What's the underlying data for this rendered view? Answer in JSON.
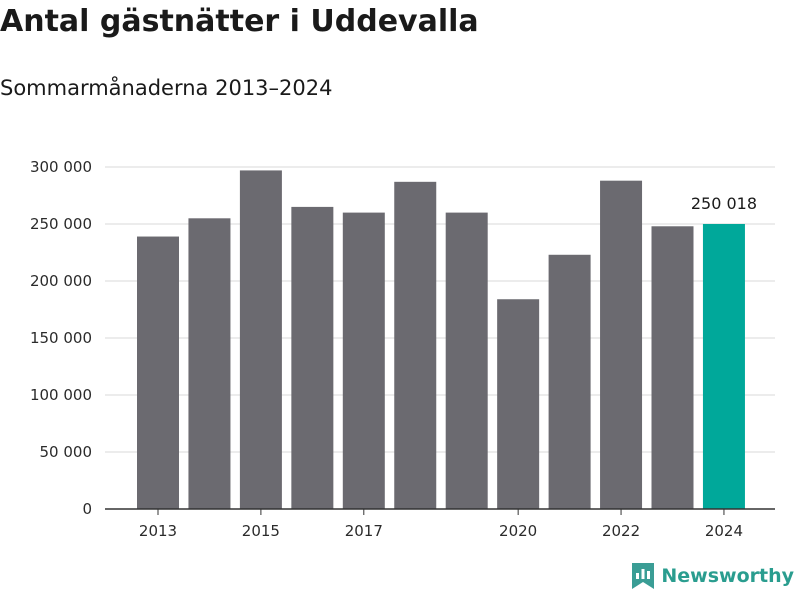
{
  "title": "Antal gästnätter i Uddevalla",
  "subtitle": "Sommarmånaderna 2013–2024",
  "brand": {
    "name": "Newsworthy",
    "logo_icon": "bar-chart-bookmark-icon",
    "color": "#3a9d95"
  },
  "colors": {
    "bar": "#6b6a70",
    "highlight": "#00a89a",
    "grid": "#d9d9d9",
    "axis": "#333333"
  },
  "chart_data": {
    "type": "bar",
    "title": "Antal gästnätter i Uddevalla",
    "subtitle": "Sommarmånaderna 2013–2024",
    "categories": [
      "2013",
      "2014",
      "2015",
      "2016",
      "2017",
      "2018",
      "2019",
      "2020",
      "2021",
      "2022",
      "2023",
      "2024"
    ],
    "values": [
      239000,
      255000,
      297000,
      265000,
      260000,
      287000,
      260000,
      184000,
      223000,
      288000,
      248000,
      250018
    ],
    "x_tick_labels": [
      "2013",
      "",
      "2015",
      "",
      "2017",
      "",
      "",
      "2020",
      "",
      "2022",
      "",
      "2024"
    ],
    "y_ticks": [
      0,
      50000,
      100000,
      150000,
      200000,
      250000,
      300000
    ],
    "y_tick_labels": [
      "0",
      "50 000",
      "100 000",
      "150 000",
      "200 000",
      "250 000",
      "300 000"
    ],
    "ylim": [
      0,
      300000
    ],
    "highlight_index": 11,
    "annotations": [
      {
        "category": "2024",
        "label": "250 018"
      }
    ],
    "grid": true,
    "legend": "none",
    "xlabel": "",
    "ylabel": ""
  }
}
